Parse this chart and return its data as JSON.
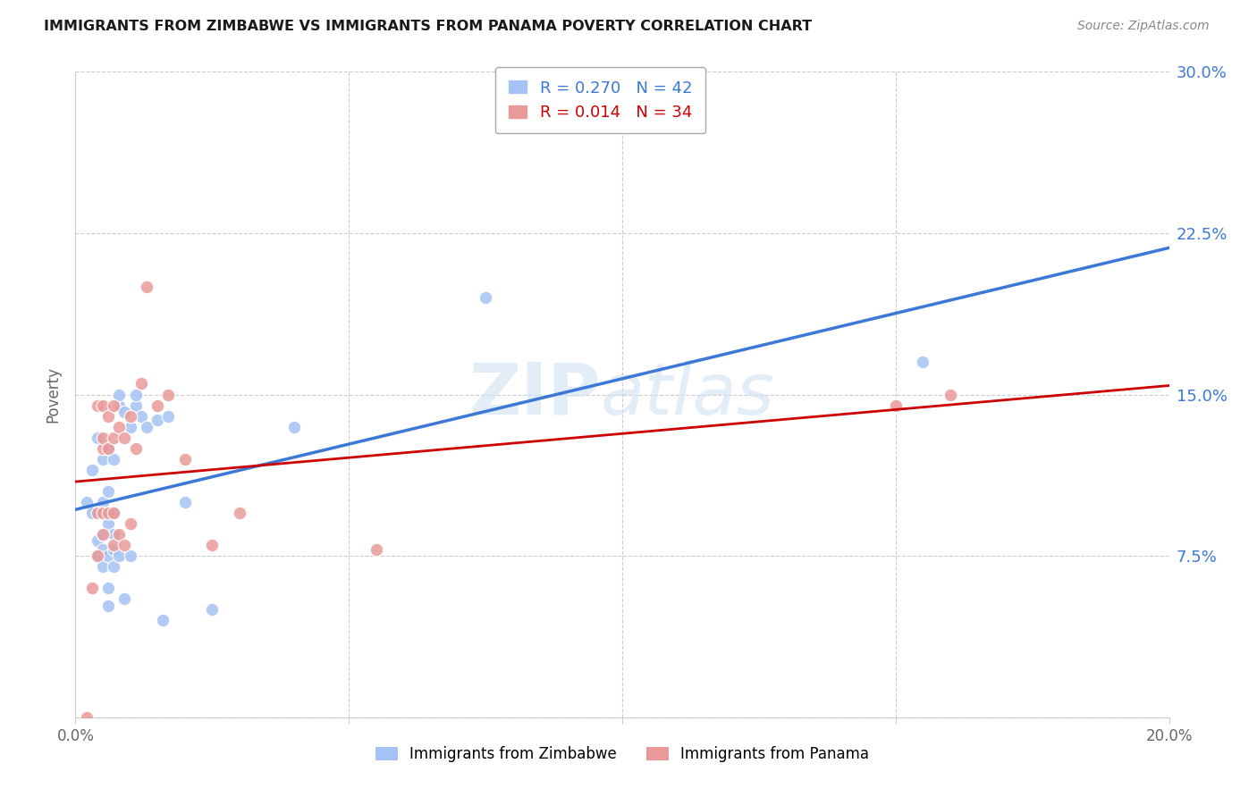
{
  "title": "IMMIGRANTS FROM ZIMBABWE VS IMMIGRANTS FROM PANAMA POVERTY CORRELATION CHART",
  "source": "Source: ZipAtlas.com",
  "ylabel": "Poverty",
  "ytick_labels": [
    "",
    "7.5%",
    "15.0%",
    "22.5%",
    "30.0%"
  ],
  "ytick_values": [
    0.0,
    0.075,
    0.15,
    0.225,
    0.3
  ],
  "xtick_positions": [
    0.0,
    0.05,
    0.1,
    0.15,
    0.2
  ],
  "xtick_labels": [
    "0.0%",
    "",
    "",
    "",
    "20.0%"
  ],
  "xlim": [
    0.0,
    0.2
  ],
  "ylim": [
    0.0,
    0.3
  ],
  "zimbabwe_color": "#a4c2f4",
  "panama_color": "#ea9999",
  "zimbabwe_line_color": "#3c78d8",
  "panama_line_color": "#cc0000",
  "legend_r_zimbabwe": "R = 0.270",
  "legend_n_zimbabwe": "N = 42",
  "legend_r_panama": "R = 0.014",
  "legend_n_panama": "N = 34",
  "zimbabwe_x": [
    0.002,
    0.003,
    0.003,
    0.004,
    0.004,
    0.004,
    0.005,
    0.005,
    0.005,
    0.005,
    0.005,
    0.005,
    0.006,
    0.006,
    0.006,
    0.006,
    0.006,
    0.006,
    0.007,
    0.007,
    0.007,
    0.007,
    0.007,
    0.008,
    0.008,
    0.008,
    0.009,
    0.009,
    0.01,
    0.01,
    0.011,
    0.011,
    0.012,
    0.013,
    0.015,
    0.016,
    0.017,
    0.02,
    0.025,
    0.04,
    0.075,
    0.155
  ],
  "zimbabwe_y": [
    0.1,
    0.095,
    0.115,
    0.075,
    0.082,
    0.13,
    0.07,
    0.078,
    0.085,
    0.095,
    0.1,
    0.12,
    0.052,
    0.06,
    0.075,
    0.09,
    0.105,
    0.125,
    0.07,
    0.078,
    0.085,
    0.095,
    0.12,
    0.075,
    0.145,
    0.15,
    0.055,
    0.142,
    0.075,
    0.135,
    0.145,
    0.15,
    0.14,
    0.135,
    0.138,
    0.045,
    0.14,
    0.1,
    0.05,
    0.135,
    0.195,
    0.165
  ],
  "panama_x": [
    0.002,
    0.003,
    0.004,
    0.004,
    0.004,
    0.005,
    0.005,
    0.005,
    0.005,
    0.005,
    0.006,
    0.006,
    0.006,
    0.007,
    0.007,
    0.007,
    0.007,
    0.008,
    0.008,
    0.009,
    0.009,
    0.01,
    0.01,
    0.011,
    0.012,
    0.013,
    0.015,
    0.017,
    0.02,
    0.025,
    0.03,
    0.055,
    0.15,
    0.16
  ],
  "panama_y": [
    0.0,
    0.06,
    0.075,
    0.095,
    0.145,
    0.085,
    0.095,
    0.125,
    0.13,
    0.145,
    0.095,
    0.125,
    0.14,
    0.08,
    0.095,
    0.13,
    0.145,
    0.085,
    0.135,
    0.08,
    0.13,
    0.09,
    0.14,
    0.125,
    0.155,
    0.2,
    0.145,
    0.15,
    0.12,
    0.08,
    0.095,
    0.078,
    0.145,
    0.15
  ],
  "watermark_zip": "ZIP",
  "watermark_atlas": "atlas",
  "background_color": "#ffffff",
  "grid_color": "#cccccc",
  "grid_linestyle": "--",
  "grid_linewidth": 0.8
}
